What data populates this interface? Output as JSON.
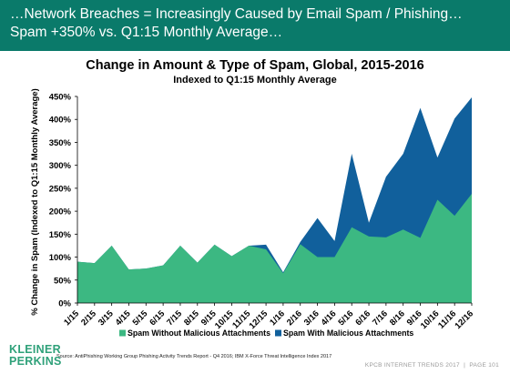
{
  "header": {
    "line1": "…Network Breaches = Increasingly Caused by Email Spam / Phishing…",
    "line2": "Spam +350% vs. Q1:15 Monthly Average…"
  },
  "source": "Source: AntiPhishing Working Group Phishing Activity Trends Report - Q4 2016; IBM X-Force Threat Intelligence Index 2017",
  "logo": {
    "line1": "KLEINER",
    "line2": "PERKINS",
    "color": "#2fa17a"
  },
  "footer": {
    "left": "KPCB INTERNET TRENDS 2017",
    "sep": "|",
    "page": "PAGE 101"
  },
  "colors": {
    "header_bg": "#0a7a6a",
    "without": "#3cb882",
    "with": "#11609c"
  },
  "chart_data": {
    "type": "area",
    "title": "Change in Amount & Type of Spam, Global, 2015-2016",
    "subtitle": "Indexed to Q1:15 Monthly Average",
    "ylabel": "% Change in Spam (Indexed to Q1:15 Monthly Average)",
    "xlabel": "",
    "ylim": [
      0,
      450
    ],
    "yticks": [
      0,
      50,
      100,
      150,
      200,
      250,
      300,
      350,
      400,
      450
    ],
    "ytick_labels": [
      "0%",
      "50%",
      "100%",
      "150%",
      "200%",
      "250%",
      "300%",
      "350%",
      "400%",
      "450%"
    ],
    "stacked": true,
    "categories": [
      "1/15",
      "2/15",
      "3/15",
      "4/15",
      "5/15",
      "6/15",
      "7/15",
      "8/15",
      "9/15",
      "10/15",
      "11/15",
      "12/15",
      "1/16",
      "2/16",
      "3/16",
      "4/16",
      "5/16",
      "6/16",
      "7/16",
      "8/16",
      "9/16",
      "10/16",
      "11/16",
      "12/16"
    ],
    "series": [
      {
        "name": "Spam Without Malicious Attachments",
        "values": [
          90,
          87,
          125,
          73,
          75,
          82,
          125,
          88,
          127,
          102,
          125,
          117,
          65,
          128,
          100,
          100,
          165,
          145,
          143,
          160,
          142,
          225,
          190,
          238
        ]
      },
      {
        "name": "Spam With Malicious Attachments",
        "values": [
          0,
          0,
          0,
          0,
          0,
          0,
          0,
          0,
          0,
          0,
          0,
          10,
          2,
          5,
          85,
          35,
          160,
          30,
          132,
          165,
          283,
          92,
          212,
          210
        ]
      }
    ],
    "legend_position": "bottom",
    "grid": false
  }
}
